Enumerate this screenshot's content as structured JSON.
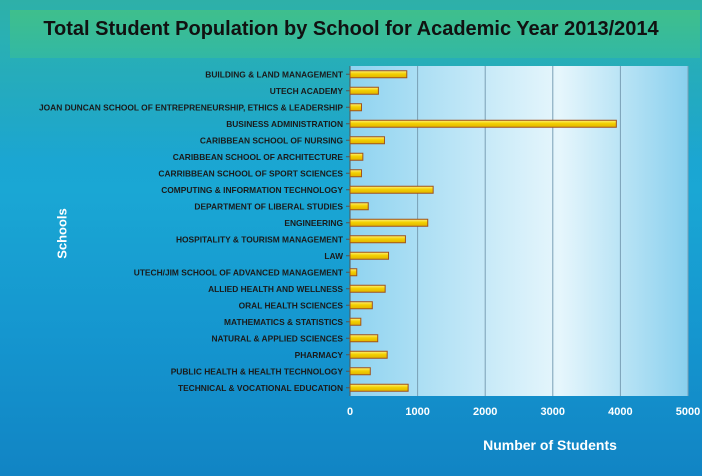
{
  "chart_data": {
    "type": "bar",
    "orientation": "horizontal",
    "title": "Total Student Population by School for Academic Year 2013/2014",
    "xlabel": "Number of Students",
    "ylabel": "Schools",
    "xlim": [
      0,
      5000
    ],
    "xticks": [
      0,
      1000,
      2000,
      3000,
      4000,
      5000
    ],
    "grid": true,
    "bar_color": "#f3d000",
    "bar_edge_color": "#a0521c",
    "categories": [
      "BUILDING & LAND MANAGEMENT",
      "UTECH ACADEMY",
      "JOAN DUNCAN SCHOOL OF ENTREPRENEURSHIP, ETHICS & LEADERSHIP",
      "BUSINESS ADMINISTRATION",
      "CARIBBEAN SCHOOL OF NURSING",
      "CARIBBEAN SCHOOL OF ARCHITECTURE",
      "CARRIBBEAN SCHOOL OF SPORT SCIENCES",
      "COMPUTING & INFORMATION TECHNOLOGY",
      "DEPARTMENT OF LIBERAL STUDIES",
      "ENGINEERING",
      "HOSPITALITY & TOURISM MANAGEMENT",
      "LAW",
      "UTECH/JIM SCHOOL OF ADVANCED MANAGEMENT",
      "ALLIED HEALTH AND WELLNESS",
      "ORAL HEALTH SCIENCES",
      "MATHEMATICS & STATISTICS",
      "NATURAL & APPLIED SCIENCES",
      "PHARMACY",
      "PUBLIC HEALTH & HEALTH TECHNOLOGY",
      "TECHNICAL & VOCATIONAL EDUCATION"
    ],
    "values": [
      840,
      420,
      170,
      3940,
      510,
      190,
      170,
      1230,
      270,
      1150,
      820,
      570,
      100,
      520,
      330,
      160,
      410,
      550,
      300,
      860
    ]
  }
}
